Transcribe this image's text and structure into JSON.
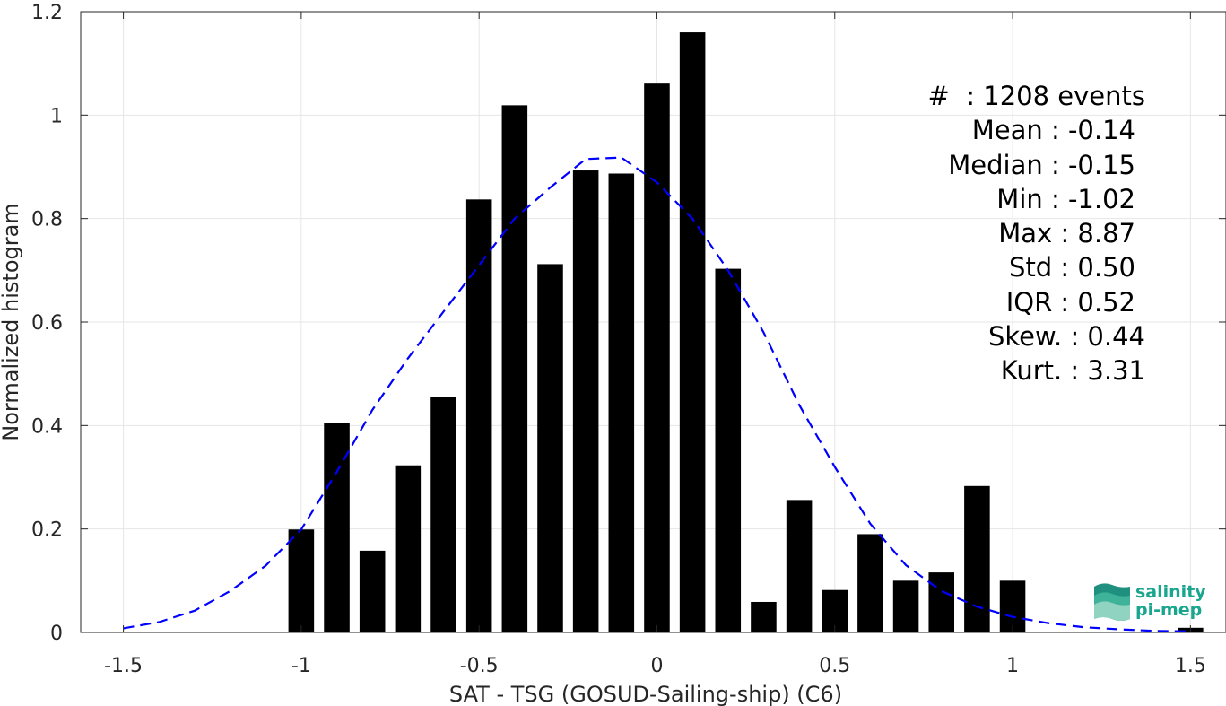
{
  "chart_data": {
    "type": "bar",
    "xlabel": "SAT - TSG (GOSUD-Sailing-ship) (C6)",
    "ylabel": "Normalized histogram",
    "xlim": [
      -1.62,
      1.6
    ],
    "ylim": [
      0,
      1.2
    ],
    "xticks": [
      -1.5,
      -1,
      -0.5,
      0,
      0.5,
      1,
      1.5
    ],
    "xtick_labels": [
      "-1.5",
      "-1",
      "-0.5",
      "0",
      "0.5",
      "1",
      "1.5"
    ],
    "yticks": [
      0,
      0.2,
      0.4,
      0.6,
      0.8,
      1,
      1.2
    ],
    "ytick_labels": [
      "0",
      "0.2",
      "0.4",
      "0.6",
      "0.8",
      "1",
      "1.2"
    ],
    "grid": true,
    "bar_width": 0.072,
    "bar_color": "#000000",
    "x": [
      -1.0,
      -0.9,
      -0.8,
      -0.7,
      -0.6,
      -0.5,
      -0.4,
      -0.3,
      -0.2,
      -0.1,
      0.0,
      0.1,
      0.2,
      0.3,
      0.4,
      0.5,
      0.6,
      0.7,
      0.8,
      0.9,
      1.0,
      1.5
    ],
    "values": [
      0.199,
      0.405,
      0.158,
      0.323,
      0.456,
      0.837,
      1.019,
      0.712,
      0.893,
      0.887,
      1.061,
      1.16,
      0.703,
      0.059,
      0.256,
      0.082,
      0.19,
      0.1,
      0.116,
      0.283,
      0.1,
      0.009
    ],
    "fit_curve": {
      "color": "#0000ff",
      "style": "dashed",
      "x": [
        -1.5,
        -1.4,
        -1.3,
        -1.2,
        -1.1,
        -1.0,
        -0.9,
        -0.8,
        -0.7,
        -0.6,
        -0.5,
        -0.4,
        -0.3,
        -0.2,
        -0.1,
        0.0,
        0.1,
        0.2,
        0.3,
        0.4,
        0.5,
        0.6,
        0.7,
        0.8,
        0.9,
        1.0,
        1.1,
        1.2,
        1.3,
        1.4,
        1.5
      ],
      "y": [
        0.008,
        0.02,
        0.042,
        0.08,
        0.129,
        0.199,
        0.31,
        0.43,
        0.53,
        0.62,
        0.71,
        0.8,
        0.86,
        0.915,
        0.918,
        0.87,
        0.8,
        0.7,
        0.58,
        0.44,
        0.32,
        0.21,
        0.13,
        0.08,
        0.05,
        0.03,
        0.018,
        0.01,
        0.006,
        0.003,
        0.002
      ]
    }
  },
  "stats": [
    "#  : 1208 events",
    "Mean : -0.14",
    "Median : -0.15",
    "Min : -1.02",
    "Max : 8.87",
    "Std : 0.50",
    "IQR : 0.52",
    "Skew. : 0.44",
    "Kurt. : 3.31"
  ],
  "logo": {
    "line1": "salinity",
    "line2": "pi-mep",
    "color": "#1aa58e"
  }
}
